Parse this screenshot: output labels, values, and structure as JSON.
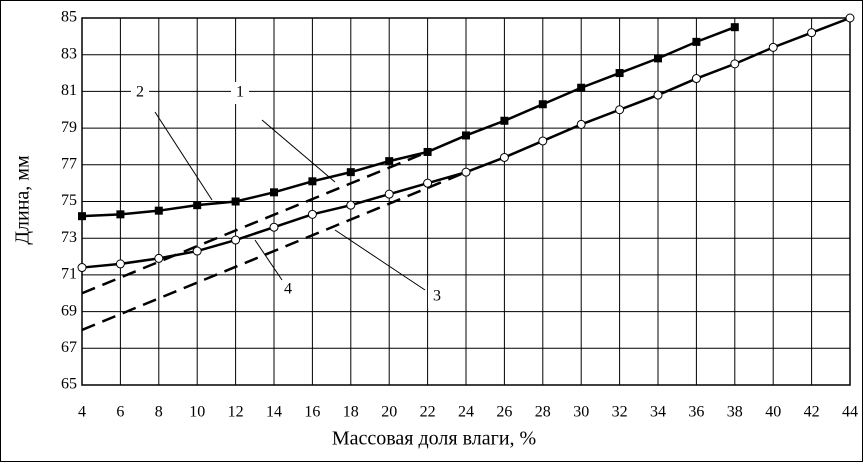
{
  "chart_data": {
    "type": "line",
    "x_label": "Массовая доля влаги, %",
    "y_label": "Длина, мм",
    "xlim": [
      4,
      44
    ],
    "xticks": [
      4,
      6,
      8,
      10,
      12,
      14,
      16,
      18,
      20,
      22,
      24,
      26,
      28,
      30,
      32,
      34,
      36,
      38,
      40,
      42,
      44
    ],
    "ylim": [
      65,
      85
    ],
    "yticks": [
      65,
      67,
      69,
      71,
      73,
      75,
      77,
      79,
      81,
      83,
      85
    ],
    "grid": true,
    "series": [
      {
        "name": "1",
        "color": "#000000",
        "style": "dashed",
        "marker": "none",
        "x": [
          4,
          22
        ],
        "values": [
          70.0,
          77.7
        ]
      },
      {
        "name": "2",
        "color": "#000000",
        "style": "solid",
        "marker": "square",
        "x": [
          4,
          6,
          8,
          10,
          12,
          14,
          16,
          18,
          20,
          22,
          24,
          26,
          28,
          30,
          32,
          34,
          36,
          38
        ],
        "values": [
          74.2,
          74.3,
          74.5,
          74.8,
          75.0,
          75.5,
          76.1,
          76.6,
          77.2,
          77.7,
          78.6,
          79.4,
          80.3,
          81.2,
          82.0,
          82.8,
          83.7,
          84.5
        ]
      },
      {
        "name": "3",
        "color": "#000000",
        "style": "dashed",
        "marker": "none",
        "x": [
          4,
          24
        ],
        "values": [
          68.0,
          76.6
        ]
      },
      {
        "name": "4",
        "color": "#000000",
        "style": "solid",
        "marker": "circle",
        "x": [
          4,
          6,
          8,
          10,
          12,
          14,
          16,
          18,
          20,
          22,
          24,
          26,
          28,
          30,
          32,
          34,
          36,
          38,
          40,
          42,
          44
        ],
        "values": [
          71.4,
          71.6,
          71.9,
          72.3,
          72.9,
          73.6,
          74.3,
          74.8,
          75.4,
          76.0,
          76.6,
          77.4,
          78.3,
          79.2,
          80.0,
          80.8,
          81.7,
          82.5,
          83.4,
          84.2,
          85.0
        ]
      }
    ]
  }
}
